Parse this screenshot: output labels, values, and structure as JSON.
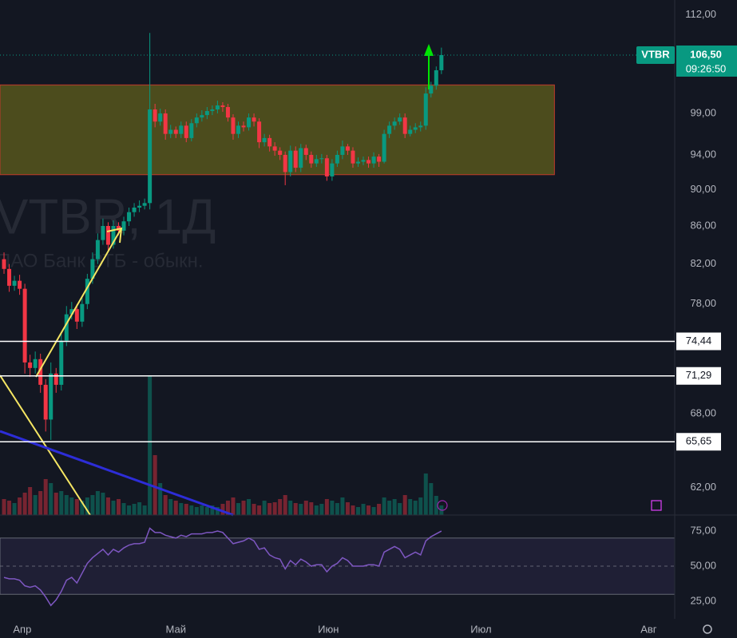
{
  "chart_data": [
    {
      "type": "candlestick",
      "symbol": "VTBR",
      "watermark": "VTBR, 1Д",
      "watermark_subtitle": "ПАО Банк ВТБ - обыкн.",
      "up_color": "#089981",
      "down_color": "#f23645",
      "log_scale": true,
      "x": [
        0,
        1,
        2,
        3,
        4,
        5,
        6,
        7,
        8,
        9,
        10,
        11,
        12,
        13,
        14,
        15,
        16,
        17,
        18,
        19,
        20,
        21,
        22,
        23,
        24,
        25,
        26,
        27,
        28,
        29,
        30,
        31,
        32,
        33,
        34,
        35,
        36,
        37,
        38,
        39,
        40,
        41,
        42,
        43,
        44,
        45,
        46,
        47,
        48,
        49,
        50,
        51,
        52,
        53,
        54,
        55,
        56,
        57,
        58,
        59,
        60,
        61,
        62,
        63,
        64,
        65,
        66,
        67,
        68,
        69,
        70,
        71,
        72,
        73,
        74,
        75,
        76,
        77,
        78,
        79,
        80,
        81,
        82,
        83,
        84
      ],
      "open": [
        82.5,
        81.5,
        79.8,
        80.3,
        79.5,
        72.5,
        72.0,
        72.8,
        70.5,
        67.5,
        71.5,
        70.5,
        74.5,
        77,
        77.5,
        76.3,
        78,
        80.5,
        82.5,
        84.5,
        86,
        84,
        86,
        85.5,
        86.5,
        87.5,
        88,
        88.2,
        88.5,
        99.5,
        98,
        99,
        96.5,
        97,
        96.5,
        97.5,
        96,
        97.8,
        98.5,
        98.8,
        99.3,
        99.5,
        100,
        99.8,
        98.5,
        96.5,
        97.5,
        97.3,
        98.5,
        98,
        95.5,
        96,
        95,
        94.5,
        94,
        92,
        94.5,
        92.5,
        94.8,
        94,
        93,
        93.5,
        93.6,
        91.5,
        93,
        94,
        95,
        94.5,
        93,
        93.2,
        93.4,
        93,
        93.8,
        93.2,
        96.5,
        97.5,
        98,
        98.5,
        96.5,
        97,
        97.3,
        97.5,
        101.5,
        102.5,
        104.5
      ],
      "high": [
        83.2,
        82,
        80.8,
        80.9,
        80,
        73.2,
        73.5,
        73.3,
        71,
        72.5,
        72,
        75.2,
        77.8,
        78.2,
        78,
        78.6,
        81,
        83.2,
        85.2,
        86.8,
        86.4,
        86.6,
        86.4,
        87,
        88,
        88.5,
        88.8,
        89,
        109.5,
        100.2,
        99.6,
        99.5,
        97.6,
        97.4,
        98,
        98,
        98.3,
        99,
        99.4,
        99.8,
        100,
        100.6,
        100.4,
        100.2,
        98.9,
        98,
        98,
        99,
        99,
        98.4,
        96.5,
        96.4,
        95.5,
        94.9,
        94.4,
        95.1,
        95,
        95.3,
        95.2,
        94.4,
        94,
        94.1,
        94,
        93.5,
        94.5,
        95.7,
        95.3,
        94.9,
        93.7,
        93.8,
        93.8,
        94.3,
        94.1,
        97,
        98,
        98.5,
        99,
        99,
        97.5,
        97.8,
        98,
        102.3,
        103,
        105,
        107.5
      ],
      "low": [
        81,
        79.2,
        79.3,
        78.9,
        71.5,
        71.2,
        71.5,
        69.8,
        66.5,
        65.8,
        69.8,
        70,
        74,
        76.5,
        75.6,
        75.8,
        77.5,
        80,
        82,
        84,
        83.4,
        83.6,
        85,
        85,
        86,
        87,
        87.5,
        87.8,
        87.8,
        97.3,
        97.5,
        95.8,
        96,
        96,
        96,
        95.5,
        95.6,
        97.3,
        98,
        98.3,
        98.8,
        99,
        99.2,
        98,
        95.8,
        96,
        96.8,
        96.9,
        97.4,
        94.8,
        95,
        94.4,
        93.9,
        93.4,
        90.5,
        91.5,
        92,
        92,
        93.4,
        92.5,
        92.6,
        93,
        91,
        91,
        92.6,
        93.5,
        94,
        92.5,
        92.6,
        92.8,
        92.5,
        92.5,
        92.6,
        93,
        96,
        97,
        97.6,
        96,
        96.2,
        96.6,
        96.8,
        97,
        101,
        102,
        104
      ],
      "close": [
        81.5,
        79.8,
        80.3,
        79.5,
        72.5,
        72.0,
        72.8,
        70.5,
        67.5,
        71.5,
        70.5,
        74.5,
        77,
        77.5,
        76.3,
        78,
        80.5,
        82.5,
        84.5,
        86,
        84,
        86,
        85.5,
        86.5,
        87.5,
        88,
        88.2,
        88.5,
        99.5,
        98,
        99,
        96.5,
        97,
        96.5,
        97.5,
        96,
        97.8,
        98.5,
        98.8,
        99.3,
        99.5,
        100,
        99.8,
        98.5,
        96.5,
        97.5,
        97.3,
        98.5,
        98,
        95.5,
        96,
        95,
        94.5,
        94,
        92,
        94.5,
        92.5,
        94.8,
        94,
        93,
        93.5,
        93.6,
        91.5,
        93,
        94,
        95,
        94.5,
        93,
        93.2,
        93.4,
        93,
        93.8,
        93.2,
        96.5,
        97.5,
        98,
        98.5,
        96.5,
        97,
        97.3,
        97.5,
        101.5,
        102.5,
        104.5,
        106.5
      ],
      "volume": [
        20,
        18,
        15,
        22,
        28,
        35,
        25,
        30,
        45,
        40,
        28,
        30,
        25,
        22,
        20,
        18,
        22,
        25,
        30,
        28,
        22,
        18,
        20,
        15,
        12,
        14,
        16,
        12,
        175,
        75,
        40,
        25,
        20,
        18,
        15,
        14,
        12,
        10,
        12,
        10,
        12,
        10,
        14,
        18,
        22,
        15,
        18,
        20,
        14,
        12,
        18,
        15,
        16,
        20,
        25,
        18,
        15,
        14,
        18,
        16,
        12,
        14,
        20,
        18,
        15,
        22,
        16,
        12,
        10,
        14,
        12,
        10,
        14,
        22,
        18,
        20,
        15,
        25,
        20,
        18,
        22,
        52,
        40,
        24,
        12
      ],
      "ylim": [
        59.9,
        114.1
      ],
      "yticks": [
        {
          "value": 62,
          "label": "62,00"
        },
        {
          "value": 68,
          "label": "68,00"
        },
        {
          "value": 78,
          "label": "78,00"
        },
        {
          "value": 82,
          "label": "82,00"
        },
        {
          "value": 86,
          "label": "86,00"
        },
        {
          "value": 90,
          "label": "90,00"
        },
        {
          "value": 94,
          "label": "94,00"
        },
        {
          "value": 99,
          "label": "99,00"
        },
        {
          "value": 112,
          "label": "112,00"
        }
      ],
      "xlim": [
        -0.77,
        128.8
      ],
      "xticks": [
        {
          "value": 3.5,
          "label": "Апр"
        },
        {
          "value": 33,
          "label": "Май"
        },
        {
          "value": 62.3,
          "label": "Июн"
        },
        {
          "value": 91.6,
          "label": "Июл"
        },
        {
          "value": 123.8,
          "label": "Авг"
        }
      ],
      "levels": [
        {
          "value": 74.44,
          "label": "74,44"
        },
        {
          "value": 71.29,
          "label": "71,29"
        },
        {
          "value": 65.65,
          "label": "65,65"
        }
      ],
      "zone": {
        "xlim": [
          -0.77,
          105.7
        ],
        "ylim": [
          91.7,
          102.6
        ]
      },
      "last_price": {
        "value": 106.5,
        "label": "106,50"
      },
      "countdown": "09:26:50"
    },
    {
      "type": "line",
      "color": "#7e57c2",
      "values": [
        42,
        41,
        41,
        40,
        36,
        35,
        36,
        33,
        28,
        22,
        26,
        32,
        40,
        42,
        38,
        45,
        52,
        56,
        59,
        62,
        58,
        62,
        60,
        63,
        65,
        66,
        66,
        67,
        77,
        74,
        74,
        72,
        71,
        70,
        72,
        71,
        73,
        73,
        73,
        74,
        74,
        75,
        74,
        70,
        66,
        67,
        68,
        70,
        68,
        62,
        63,
        58,
        56,
        55,
        48,
        54,
        51,
        55,
        53,
        50,
        51,
        51,
        46,
        50,
        52,
        56,
        54,
        50,
        50,
        50,
        51,
        51,
        50,
        60,
        62,
        64,
        62,
        56,
        58,
        60,
        58,
        68,
        71,
        73,
        75
      ],
      "ylim": [
        12.5,
        86.4
      ],
      "yticks": [
        {
          "value": 25,
          "label": "25,00"
        },
        {
          "value": 50,
          "label": "50,00"
        },
        {
          "value": 75,
          "label": "75,00"
        }
      ],
      "band": [
        30,
        70
      ]
    }
  ]
}
